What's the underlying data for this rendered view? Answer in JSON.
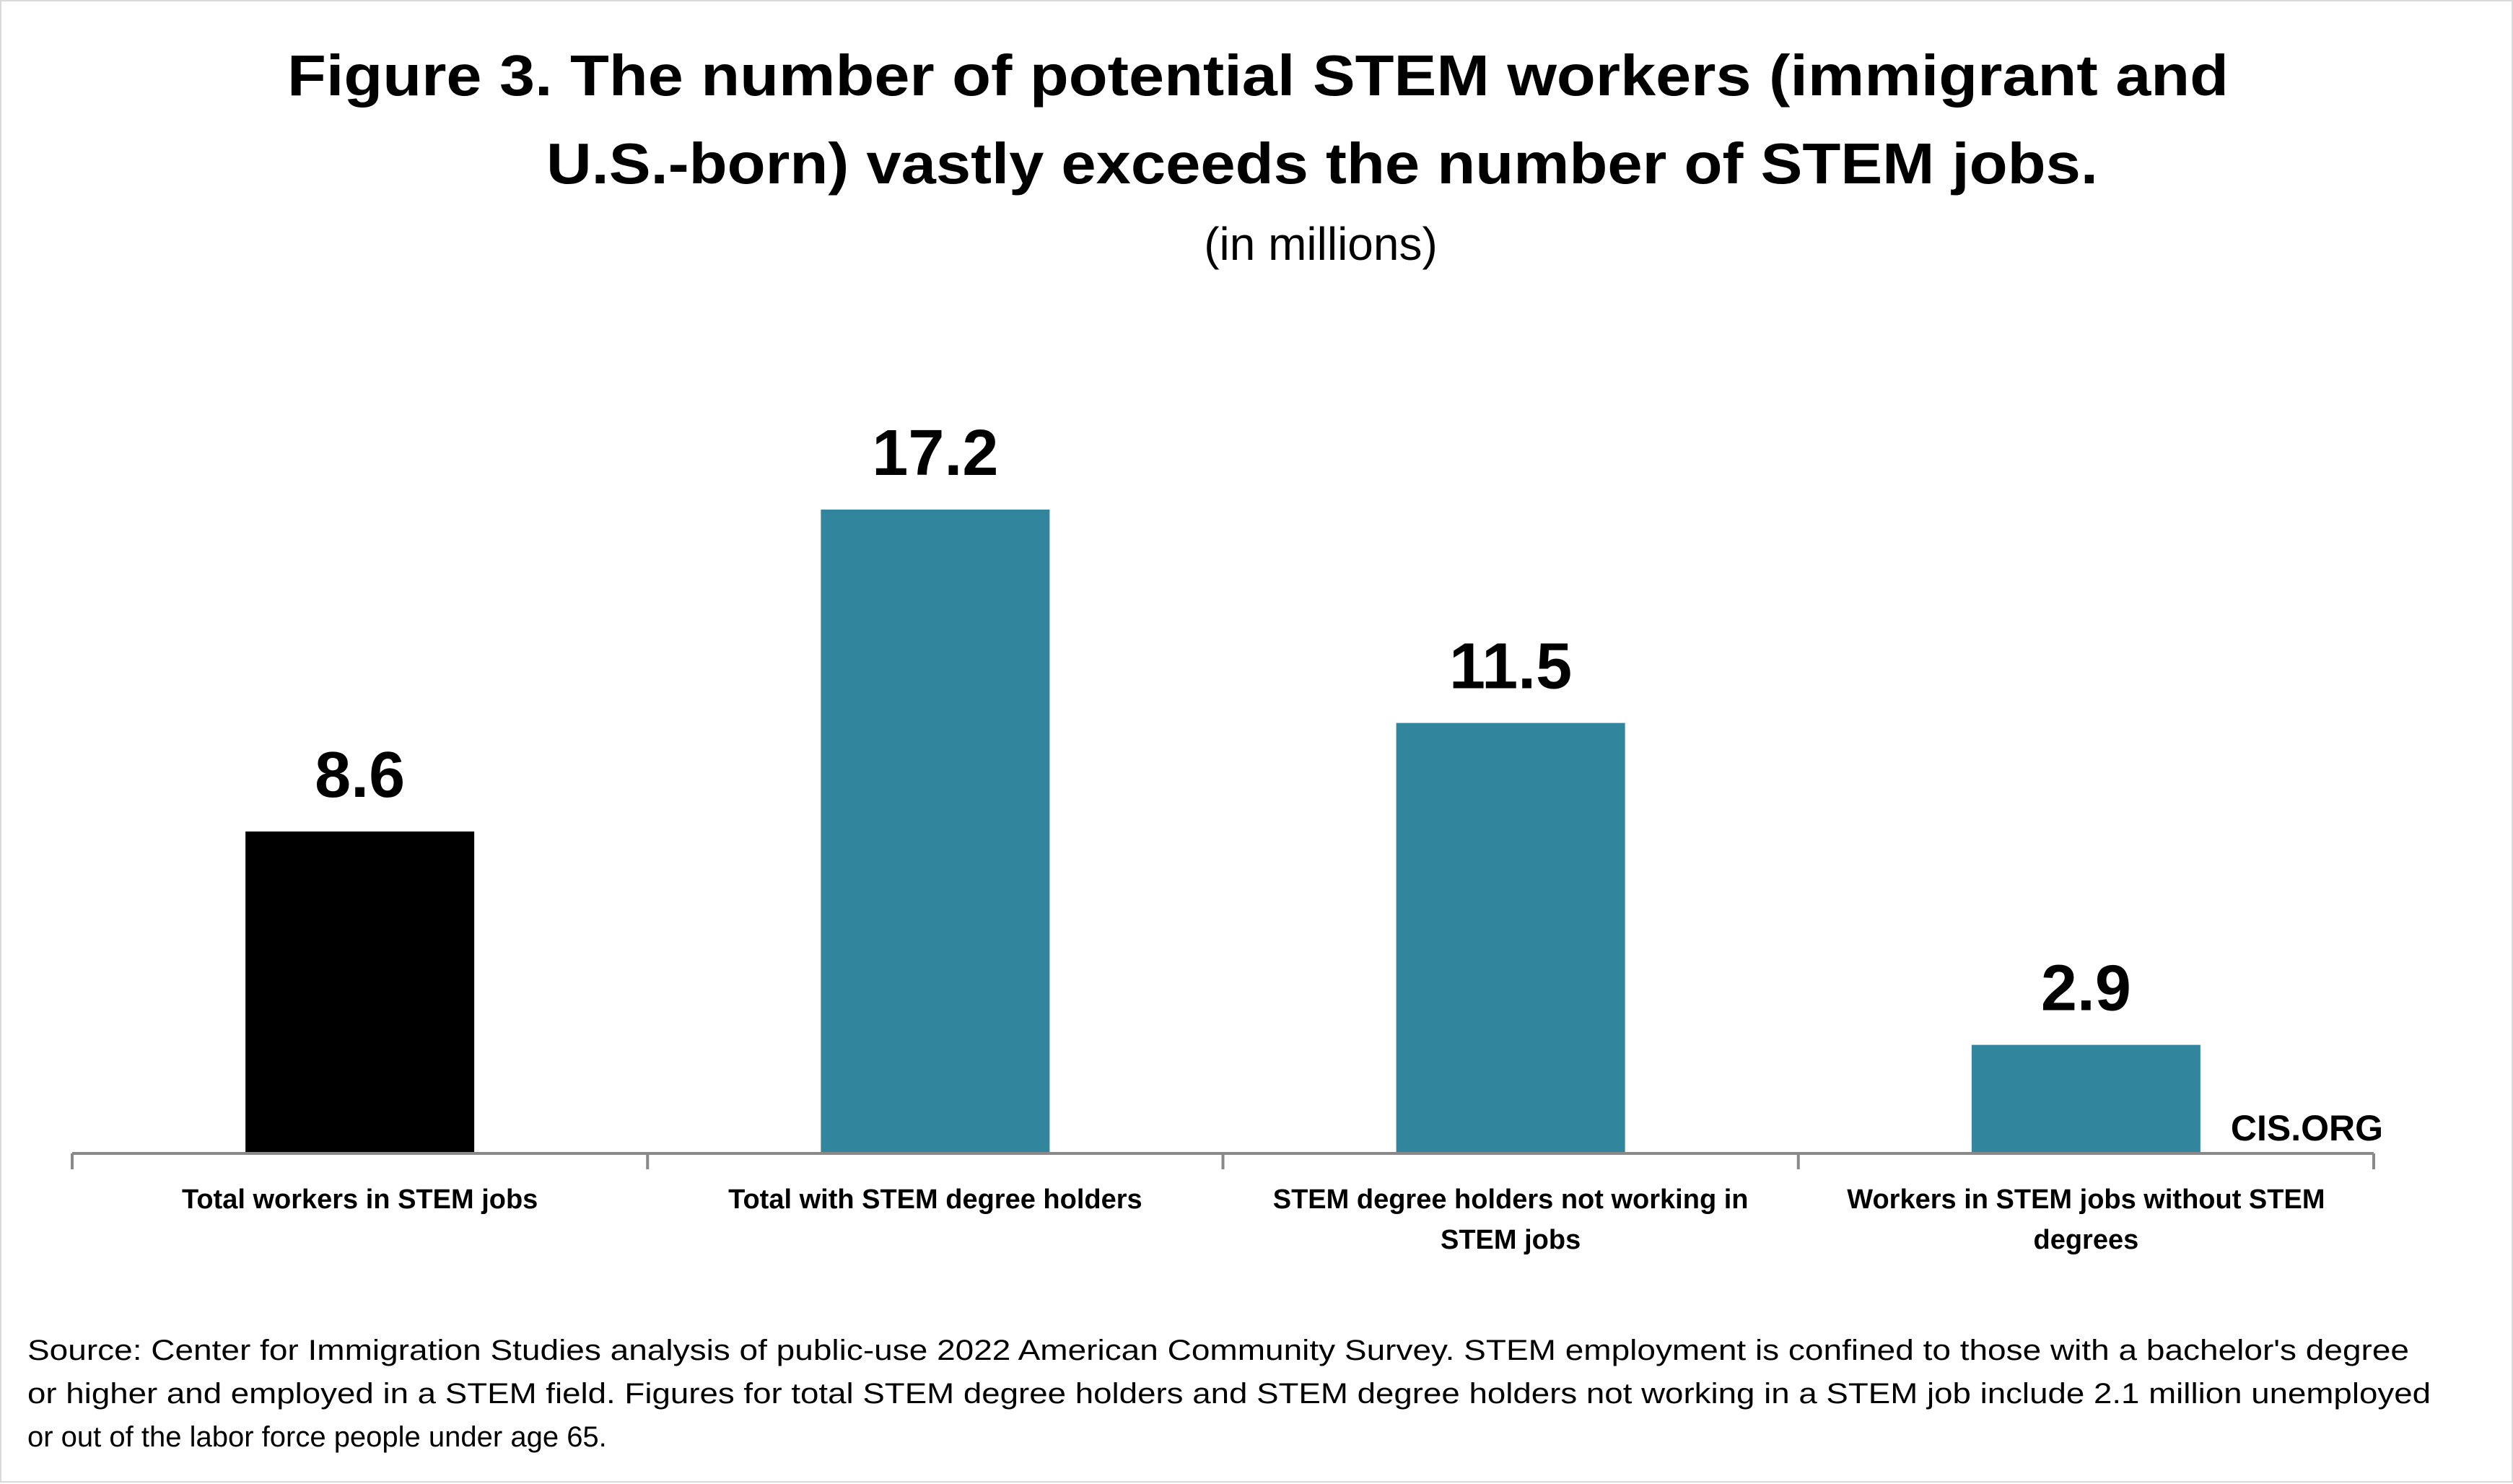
{
  "chart_data": {
    "type": "bar",
    "title_lines": [
      "Figure 3. The number of potential STEM workers (immigrant and",
      "U.S.-born) vastly exceeds the number of STEM jobs."
    ],
    "subtitle": "(in millions)",
    "categories": [
      [
        "Total workers in STEM jobs"
      ],
      [
        "Total with STEM degree holders"
      ],
      [
        "STEM degree holders not working in",
        "STEM jobs"
      ],
      [
        "Workers in STEM jobs without STEM",
        "degrees"
      ]
    ],
    "values": [
      8.6,
      17.2,
      11.5,
      2.9
    ],
    "value_labels": [
      "8.6",
      "17.2",
      "11.5",
      "2.9"
    ],
    "colors": [
      "#000000",
      "#31859C",
      "#31859C",
      "#31859C"
    ],
    "xlabel": "",
    "ylabel": "",
    "ylim": [
      0,
      17.2
    ],
    "grid": false,
    "legend": "none"
  },
  "branding": "CIS.ORG",
  "source_lines": [
    "Source: Center for Immigration Studies analysis of public-use 2022 American Community Survey. STEM employment is confined to those with a bachelor's degree",
    "or higher and employed in a STEM field. Figures for total STEM degree holders and STEM degree holders not working in a STEM job include 2.1 million unemployed",
    "or out of the labor force people under age 65."
  ]
}
